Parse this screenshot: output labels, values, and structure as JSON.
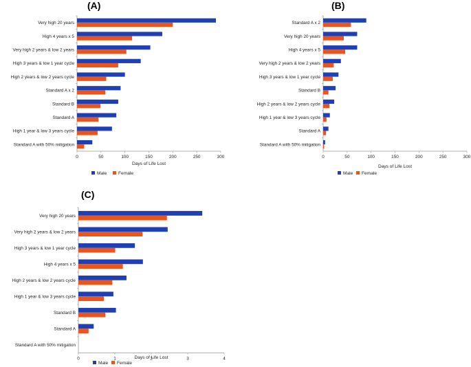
{
  "colors": {
    "male": "#1f3fb5",
    "female": "#e8561e"
  },
  "chart_data": [
    {
      "type": "bar",
      "orientation": "horizontal",
      "panel_label": "(A)",
      "title": "(A)",
      "xlabel": "Days of Life Lost",
      "ylabel": "",
      "xlim": [
        0,
        300
      ],
      "xticks": [
        0,
        50,
        100,
        150,
        200,
        250,
        300
      ],
      "grid": false,
      "legend": "bottom",
      "categories": [
        "Very high 20 years",
        "High 4 years x 5",
        "Very high 2 years & low 2 years",
        "High 3 years & low 1 year cycle",
        "High 2 years & low 2 years cycle",
        "Standard A x 2",
        "Standard B",
        "Standard A",
        "High 1 year & low 3 years cycle",
        "Standard A with 50% mitigation"
      ],
      "series": [
        {
          "name": "Male",
          "values": [
            290,
            178,
            153,
            133,
            100,
            91,
            86,
            82,
            73,
            32
          ]
        },
        {
          "name": "Female",
          "values": [
            200,
            115,
            103,
            86,
            61,
            59,
            49,
            45,
            43,
            15
          ]
        }
      ]
    },
    {
      "type": "bar",
      "orientation": "horizontal",
      "panel_label": "(B)",
      "title": "(B)",
      "xlabel": "Days of Life Lost",
      "ylabel": "",
      "xlim": [
        0,
        300
      ],
      "xticks": [
        0,
        50,
        100,
        150,
        200,
        250,
        300
      ],
      "grid": false,
      "legend": "bottom",
      "categories": [
        "Standard A x 2",
        "Very high 20 years",
        "High 4 years x 5",
        "Very high 2 years & low 2 years",
        "High 3 years & low 1 year cycle",
        "Standard B",
        "High 2 years & low 2 years cycle",
        "High 1 year & low 3 years cycle",
        "Standard A",
        "Standard A with 50% mitigation"
      ],
      "series": [
        {
          "name": "Male",
          "values": [
            90,
            71,
            71,
            37,
            32,
            26,
            23,
            14,
            11,
            4
          ]
        },
        {
          "name": "Female",
          "values": [
            58,
            43,
            46,
            22,
            20,
            11,
            13,
            7,
            6,
            2
          ]
        }
      ]
    },
    {
      "type": "bar",
      "orientation": "horizontal",
      "panel_label": "(C)",
      "title": "(C)",
      "xlabel": "Days of Life Lost",
      "ylabel": "",
      "xlim": [
        0,
        4
      ],
      "xticks": [
        0,
        1,
        2,
        3,
        4
      ],
      "grid": false,
      "legend": "bottom",
      "categories": [
        "Very high 20 years",
        "Very high 2 years & low 2 years",
        "High 3 years & low 1 year cycle",
        "High 4 years x 5",
        "High 2 years & low 2 years cycle",
        "High 1 year & low 3 years cycle",
        "Standard B",
        "Standard A",
        "Standard A with 50% mitigation"
      ],
      "series": [
        {
          "name": "Male",
          "values": [
            3.4,
            2.45,
            1.55,
            1.77,
            1.32,
            0.96,
            1.03,
            0.42,
            0.0
          ]
        },
        {
          "name": "Female",
          "values": [
            2.43,
            1.76,
            1.01,
            1.22,
            0.93,
            0.7,
            0.74,
            0.28,
            0.0
          ]
        }
      ]
    }
  ]
}
